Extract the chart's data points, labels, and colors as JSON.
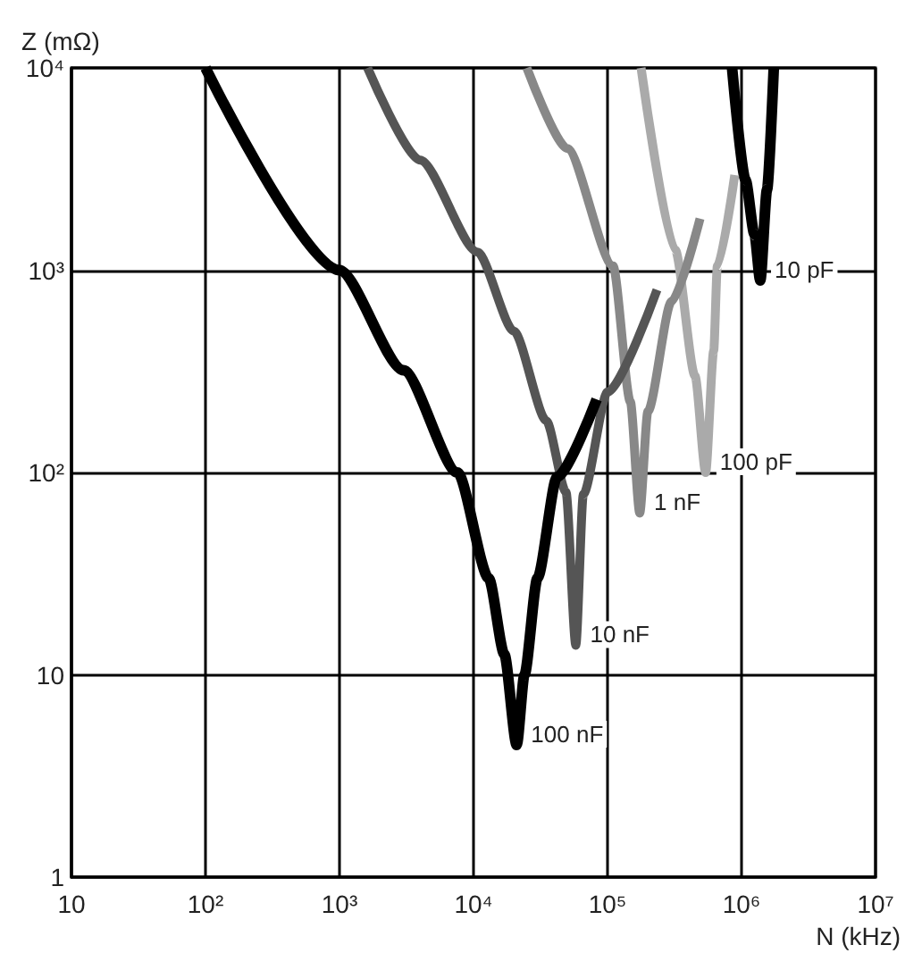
{
  "chart_data": {
    "type": "line",
    "xlabel": "N (kHz)",
    "ylabel": "Z (mΩ)",
    "log": "xy",
    "grid": true,
    "marker": "none",
    "line_style": "solid",
    "xlim": [
      10,
      10000000
    ],
    "ylim": [
      1,
      10000
    ],
    "xticks": [
      10,
      {
        "value": 100,
        "label": "10²"
      },
      {
        "value": 1000,
        "label": "10³"
      },
      {
        "value": 10000,
        "label": "10⁴"
      },
      {
        "value": 100000,
        "label": "10⁵"
      },
      {
        "value": 1000000,
        "label": "10⁶"
      },
      {
        "value": 10000000,
        "label": "10⁷"
      }
    ],
    "yticks": [
      1,
      10,
      {
        "value": 100,
        "label": "10²"
      },
      {
        "value": 1000,
        "label": "10³"
      },
      {
        "value": 10000,
        "label": "10⁴"
      }
    ],
    "series": [
      {
        "name": "10 pF",
        "color": "#000000",
        "x": [
          850000,
          1070000,
          1250000,
          1380000,
          1550000,
          1740000
        ],
        "values": [
          10000,
          2800,
          1500,
          890,
          2500,
          10000
        ]
      },
      {
        "name": "100 pF",
        "color": "#aaaaaa",
        "x": [
          178000,
          320000,
          450000,
          540000,
          620000,
          660000,
          890000
        ],
        "values": [
          10000,
          1260,
          300,
          100,
          400,
          1050,
          2950
        ]
      },
      {
        "name": "1 nF",
        "color": "#888888",
        "x": [
          25000,
          50000,
          110000,
          148000,
          174000,
          200000,
          300000,
          490000
        ],
        "values": [
          10000,
          4000,
          1050,
          224,
          63,
          200,
          700,
          1800
        ]
      },
      {
        "name": "10 nF",
        "color": "#555555",
        "x": [
          1620,
          4000,
          10700,
          20000,
          35000,
          49000,
          58000,
          66000,
          100000,
          234000
        ],
        "values": [
          10000,
          3500,
          1230,
          500,
          180,
          80,
          14,
          78,
          250,
          800
        ]
      },
      {
        "name": "100 nF",
        "color": "#000000",
        "x": [
          100,
          1000,
          3000,
          7600,
          13000,
          17000,
          21000,
          24000,
          30000,
          42000,
          83000
        ],
        "values": [
          10000,
          1000,
          320,
          100,
          30,
          12.6,
          4.5,
          10,
          30,
          95,
          230
        ]
      }
    ]
  }
}
